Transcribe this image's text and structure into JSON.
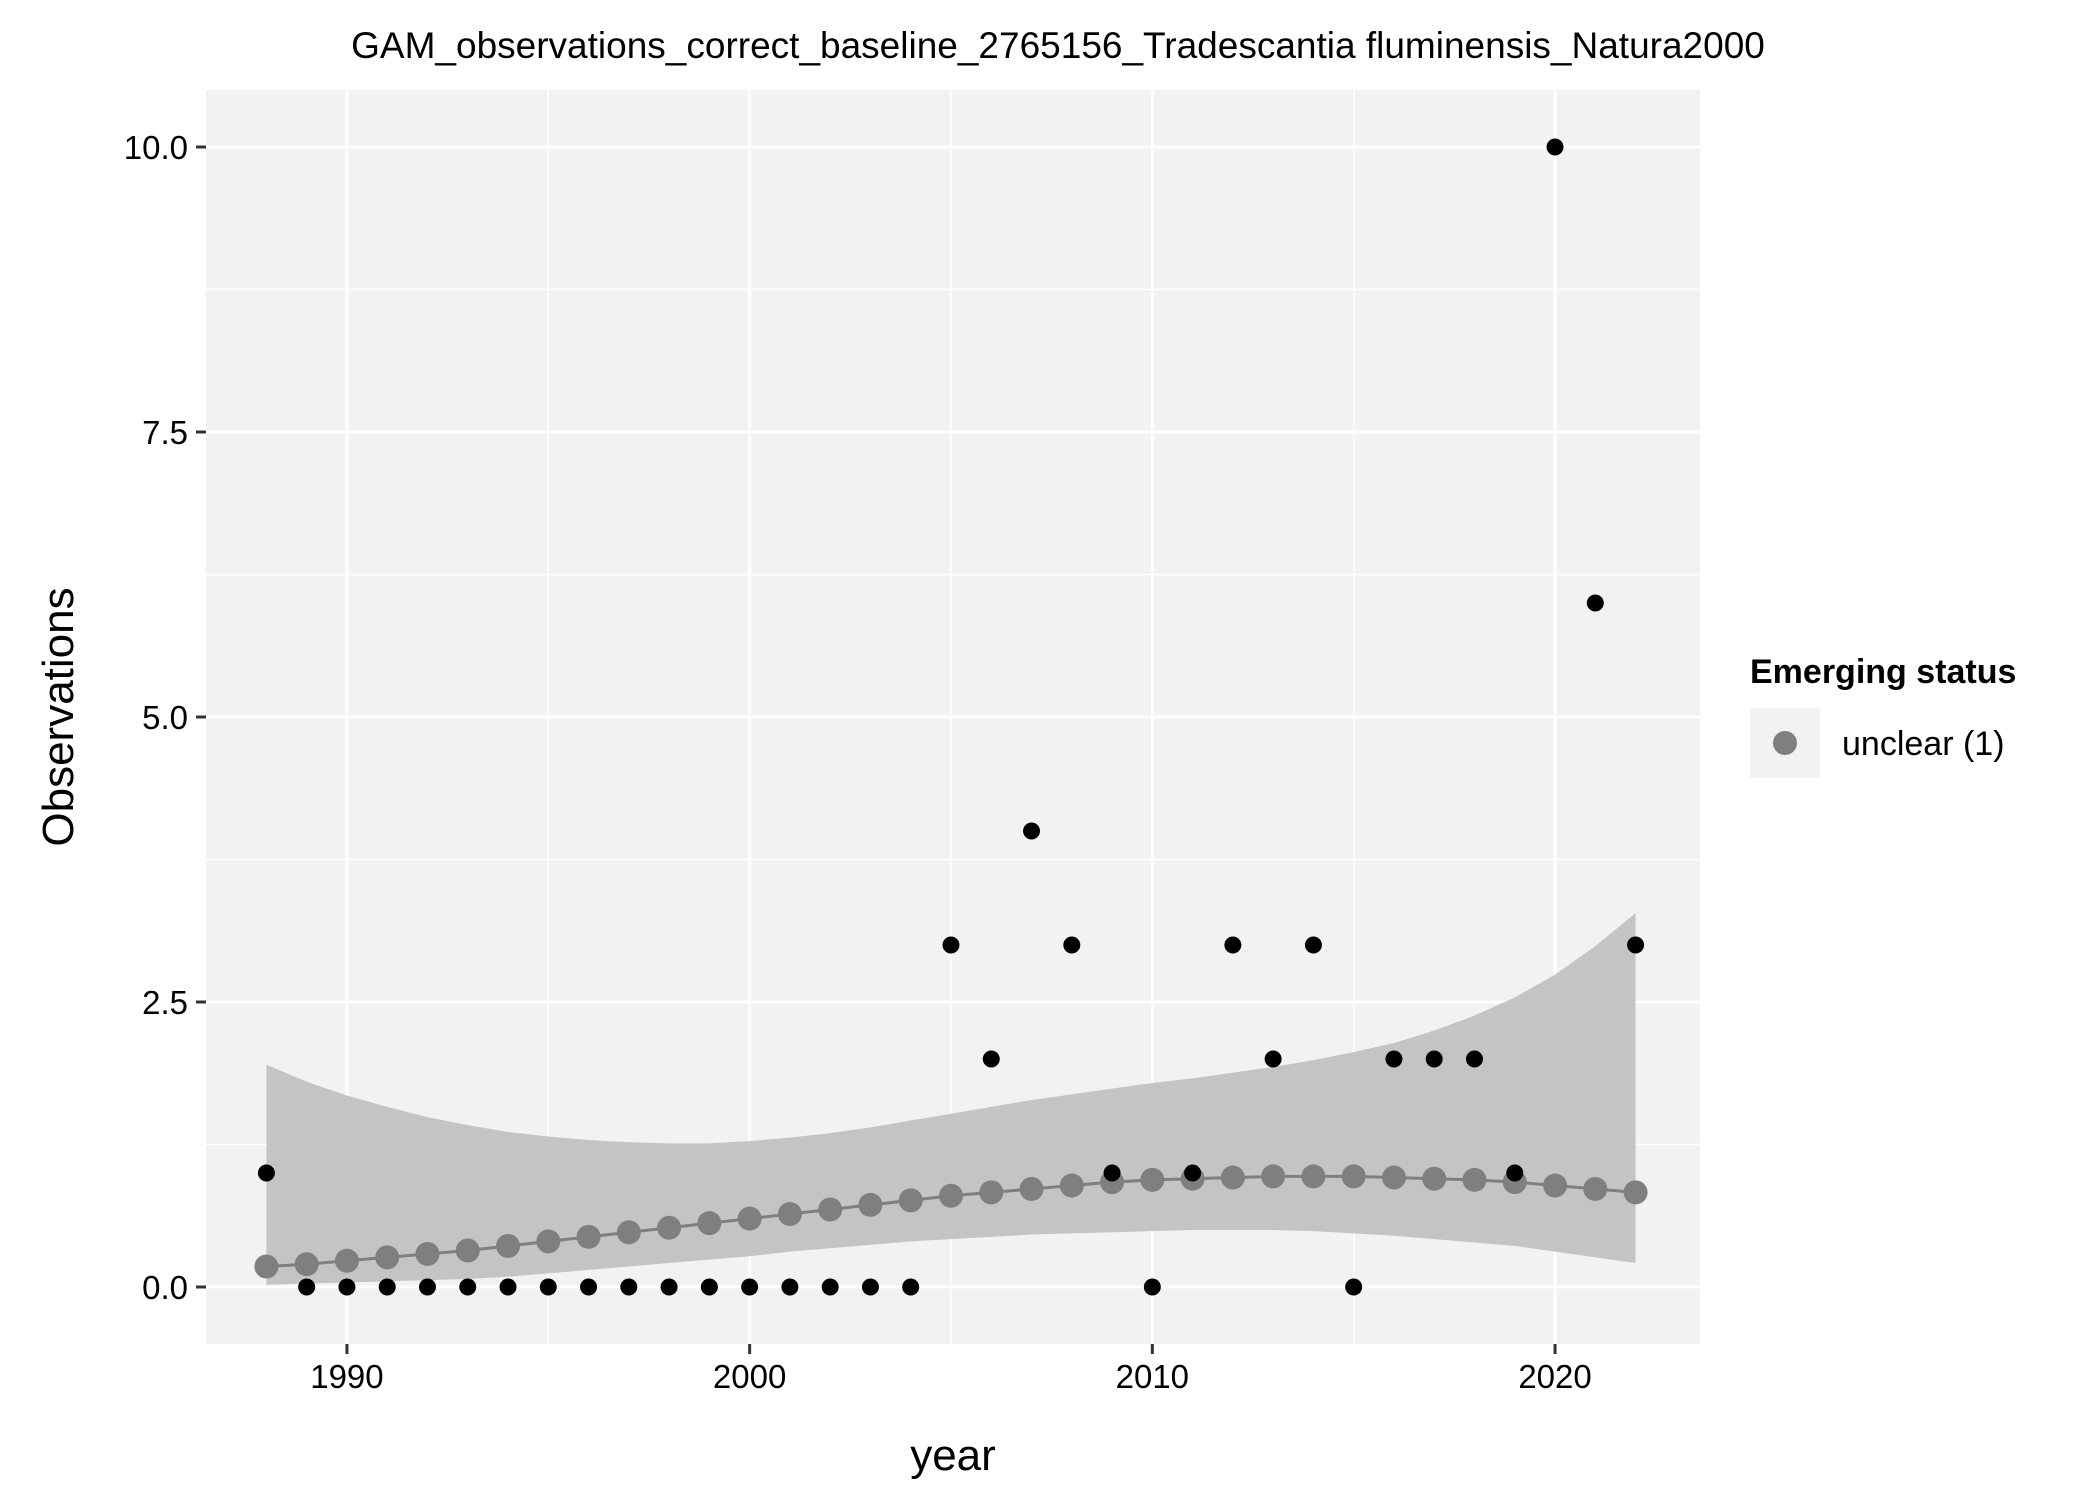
{
  "chart_data": {
    "type": "scatter",
    "title": "GAM_observations_correct_baseline_2765156_Tradescantia fluminensis_Natura2000",
    "xlabel": "year",
    "ylabel": "Observations",
    "xlim": [
      1986.5,
      2023.6
    ],
    "ylim": [
      -0.5,
      10.5
    ],
    "x_ticks": [
      1990,
      2000,
      2010,
      2020
    ],
    "x_tick_labels": [
      "1990",
      "2000",
      "2010",
      "2020"
    ],
    "y_ticks": [
      0,
      2.5,
      5,
      7.5,
      10
    ],
    "y_tick_labels": [
      "0.0",
      "2.5",
      "5.0",
      "7.5",
      "10.0"
    ],
    "grid": true,
    "background_color": "#f2f2f2",
    "grid_color": "#ffffff",
    "observed": {
      "color": "#000000",
      "x": [
        1988,
        1989,
        1990,
        1991,
        1992,
        1993,
        1994,
        1995,
        1996,
        1997,
        1998,
        1999,
        2000,
        2001,
        2002,
        2003,
        2004,
        2005,
        2006,
        2007,
        2008,
        2009,
        2010,
        2011,
        2012,
        2013,
        2014,
        2015,
        2016,
        2017,
        2018,
        2019,
        2020,
        2021,
        2022
      ],
      "y": [
        1,
        0,
        0,
        0,
        0,
        0,
        0,
        0,
        0,
        0,
        0,
        0,
        0,
        0,
        0,
        0,
        0,
        3,
        2,
        4,
        3,
        1,
        0,
        1,
        3,
        2,
        3,
        0,
        2,
        2,
        2,
        1,
        10,
        6,
        3
      ]
    },
    "series": [
      {
        "name": "unclear (1)",
        "color": "#7f7f7f",
        "x": [
          1988,
          1989,
          1990,
          1991,
          1992,
          1993,
          1994,
          1995,
          1996,
          1997,
          1998,
          1999,
          2000,
          2001,
          2002,
          2003,
          2004,
          2005,
          2006,
          2007,
          2008,
          2009,
          2010,
          2011,
          2012,
          2013,
          2014,
          2015,
          2016,
          2017,
          2018,
          2019,
          2020,
          2021,
          2022
        ],
        "y": [
          0.18,
          0.2,
          0.23,
          0.26,
          0.29,
          0.32,
          0.36,
          0.4,
          0.44,
          0.48,
          0.52,
          0.56,
          0.6,
          0.64,
          0.68,
          0.72,
          0.76,
          0.8,
          0.83,
          0.86,
          0.89,
          0.92,
          0.94,
          0.95,
          0.96,
          0.97,
          0.97,
          0.97,
          0.96,
          0.95,
          0.94,
          0.92,
          0.89,
          0.86,
          0.83
        ],
        "lower": [
          0.02,
          0.03,
          0.04,
          0.05,
          0.06,
          0.07,
          0.09,
          0.12,
          0.15,
          0.18,
          0.21,
          0.24,
          0.27,
          0.31,
          0.34,
          0.37,
          0.4,
          0.42,
          0.44,
          0.46,
          0.47,
          0.48,
          0.49,
          0.5,
          0.5,
          0.5,
          0.49,
          0.47,
          0.45,
          0.42,
          0.39,
          0.36,
          0.31,
          0.26,
          0.21
        ],
        "upper": [
          1.95,
          1.8,
          1.68,
          1.58,
          1.49,
          1.42,
          1.36,
          1.32,
          1.29,
          1.27,
          1.26,
          1.26,
          1.28,
          1.31,
          1.35,
          1.4,
          1.46,
          1.52,
          1.58,
          1.64,
          1.69,
          1.74,
          1.79,
          1.83,
          1.88,
          1.93,
          1.99,
          2.06,
          2.14,
          2.25,
          2.38,
          2.54,
          2.74,
          2.99,
          3.28
        ]
      }
    ],
    "legend": {
      "title": "Emerging status",
      "position": "right",
      "items": [
        {
          "label": "unclear (1)",
          "color": "#7f7f7f"
        }
      ]
    }
  }
}
